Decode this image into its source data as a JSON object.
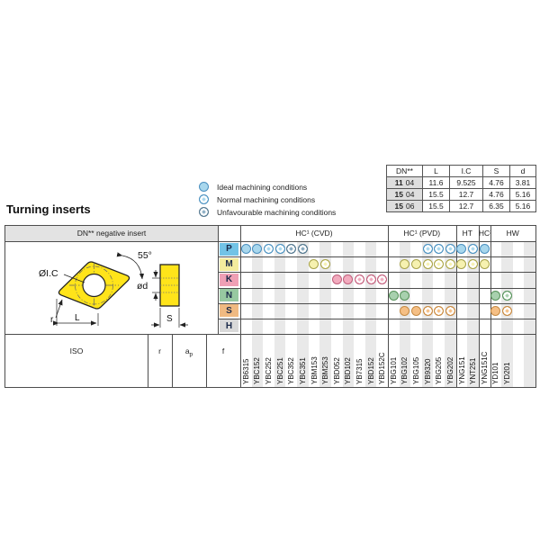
{
  "page": {
    "title": "Turning inserts"
  },
  "legend": {
    "items": [
      {
        "type": "ideal",
        "label": "Ideal machining conditions"
      },
      {
        "type": "normal",
        "label": "Normal machining conditions"
      },
      {
        "type": "unfav",
        "label": "Unfavourable machining conditions"
      }
    ]
  },
  "spec_table": {
    "headers": [
      "DN**",
      "L",
      "I.C",
      "S",
      "d"
    ],
    "rows": [
      {
        "dn_bold": "11",
        "dn_rest": "04",
        "values": [
          "11.6",
          "9.525",
          "4.76",
          "3.81"
        ]
      },
      {
        "dn_bold": "15",
        "dn_rest": "04",
        "values": [
          "15.5",
          "12.7",
          "4.76",
          "5.16"
        ]
      },
      {
        "dn_bold": "15",
        "dn_rest": "06",
        "values": [
          "15.5",
          "12.7",
          "6.35",
          "5.16"
        ]
      }
    ]
  },
  "main_table": {
    "corner_label": "DN** negative insert",
    "sections": [
      {
        "label": "HC¹ (CVD)",
        "cols": 13
      },
      {
        "label": "HC¹ (PVD)",
        "cols": 6
      },
      {
        "label": "HT",
        "cols": 2
      },
      {
        "label": "HC²",
        "cols": 1
      },
      {
        "label": "HW",
        "cols": 4
      }
    ],
    "columns": [
      "YB6315",
      "YBC152",
      "YBC252",
      "YBC251",
      "YBC352",
      "YBC351",
      "YBM153",
      "YBM253",
      "YBD052",
      "YBD102",
      "YB7315",
      "YBD152",
      "YBD152C",
      "YBG101",
      "YBG102",
      "YBG105",
      "YB9320",
      "YBG205",
      "YBG202",
      "YNG151",
      "YNT251",
      "YNG151C",
      "YD101",
      "YD201",
      "",
      ""
    ],
    "footer": {
      "iso_label": "ISO",
      "r_label": "r",
      "ap_main": "a",
      "ap_sub": "p",
      "f_label": "f"
    },
    "rows": [
      {
        "letter": "P",
        "bg": "#72C3E6",
        "sym_fill": "#A8D7ED",
        "sym_border": "#4A8FBF",
        "unfav_fill": "#86A8BE",
        "unfav_border": "#55788E",
        "cells": {
          "0": "ideal",
          "1": "ideal",
          "2": "normal",
          "3": "normal",
          "4": "unfav",
          "5": "unfav",
          "16": "normal",
          "17": "normal",
          "18": "normal",
          "19": "ideal",
          "20": "normal",
          "21": "ideal"
        }
      },
      {
        "letter": "M",
        "bg": "#F3EC9E",
        "sym_fill": "#F6F1B0",
        "sym_border": "#A8A34A",
        "cells": {
          "6": "ideal",
          "7": "normal",
          "14": "ideal",
          "15": "ideal",
          "16": "normal",
          "17": "normal",
          "18": "normal",
          "19": "ideal",
          "20": "normal",
          "21": "ideal"
        }
      },
      {
        "letter": "K",
        "bg": "#EFA0B5",
        "sym_fill": "#F2ABBE",
        "sym_border": "#C05F7C",
        "cells": {
          "8": "ideal",
          "9": "ideal",
          "10": "normal",
          "11": "normal",
          "12": "normal"
        }
      },
      {
        "letter": "N",
        "bg": "#97C9A1",
        "sym_fill": "#A8D0AE",
        "sym_border": "#569259",
        "cells": {
          "13": "ideal",
          "14": "ideal",
          "22": "ideal",
          "23": "normal"
        }
      },
      {
        "letter": "S",
        "bg": "#F0BA82",
        "sym_fill": "#F5BF85",
        "sym_border": "#C68A43",
        "cells": {
          "14": "ideal",
          "15": "ideal",
          "16": "normal",
          "17": "normal",
          "18": "normal",
          "22": "ideal",
          "23": "normal"
        }
      },
      {
        "letter": "H",
        "bg": "#D9D9D9",
        "sym_fill": "#DADADA",
        "sym_border": "#969696",
        "cells": {}
      }
    ]
  },
  "diagram": {
    "angle_label": "55°",
    "ic_label": "ØI.C",
    "d_label": "ød",
    "r_label": "r",
    "l_label": "L",
    "s_label": "S"
  },
  "colors": {
    "ideal_fill": "#A8D7ED",
    "ideal_border": "#4A8FBF",
    "unfav_fill": "#8CAEC4",
    "unfav_border": "#55788E",
    "insert_yellow": "#FFE41A",
    "row_P": "#72C3E6",
    "row_M": "#F3EC9E",
    "row_K": "#EFA0B5",
    "row_N": "#97C9A1",
    "row_S": "#F0BA82",
    "row_H": "#D9D9D9"
  }
}
